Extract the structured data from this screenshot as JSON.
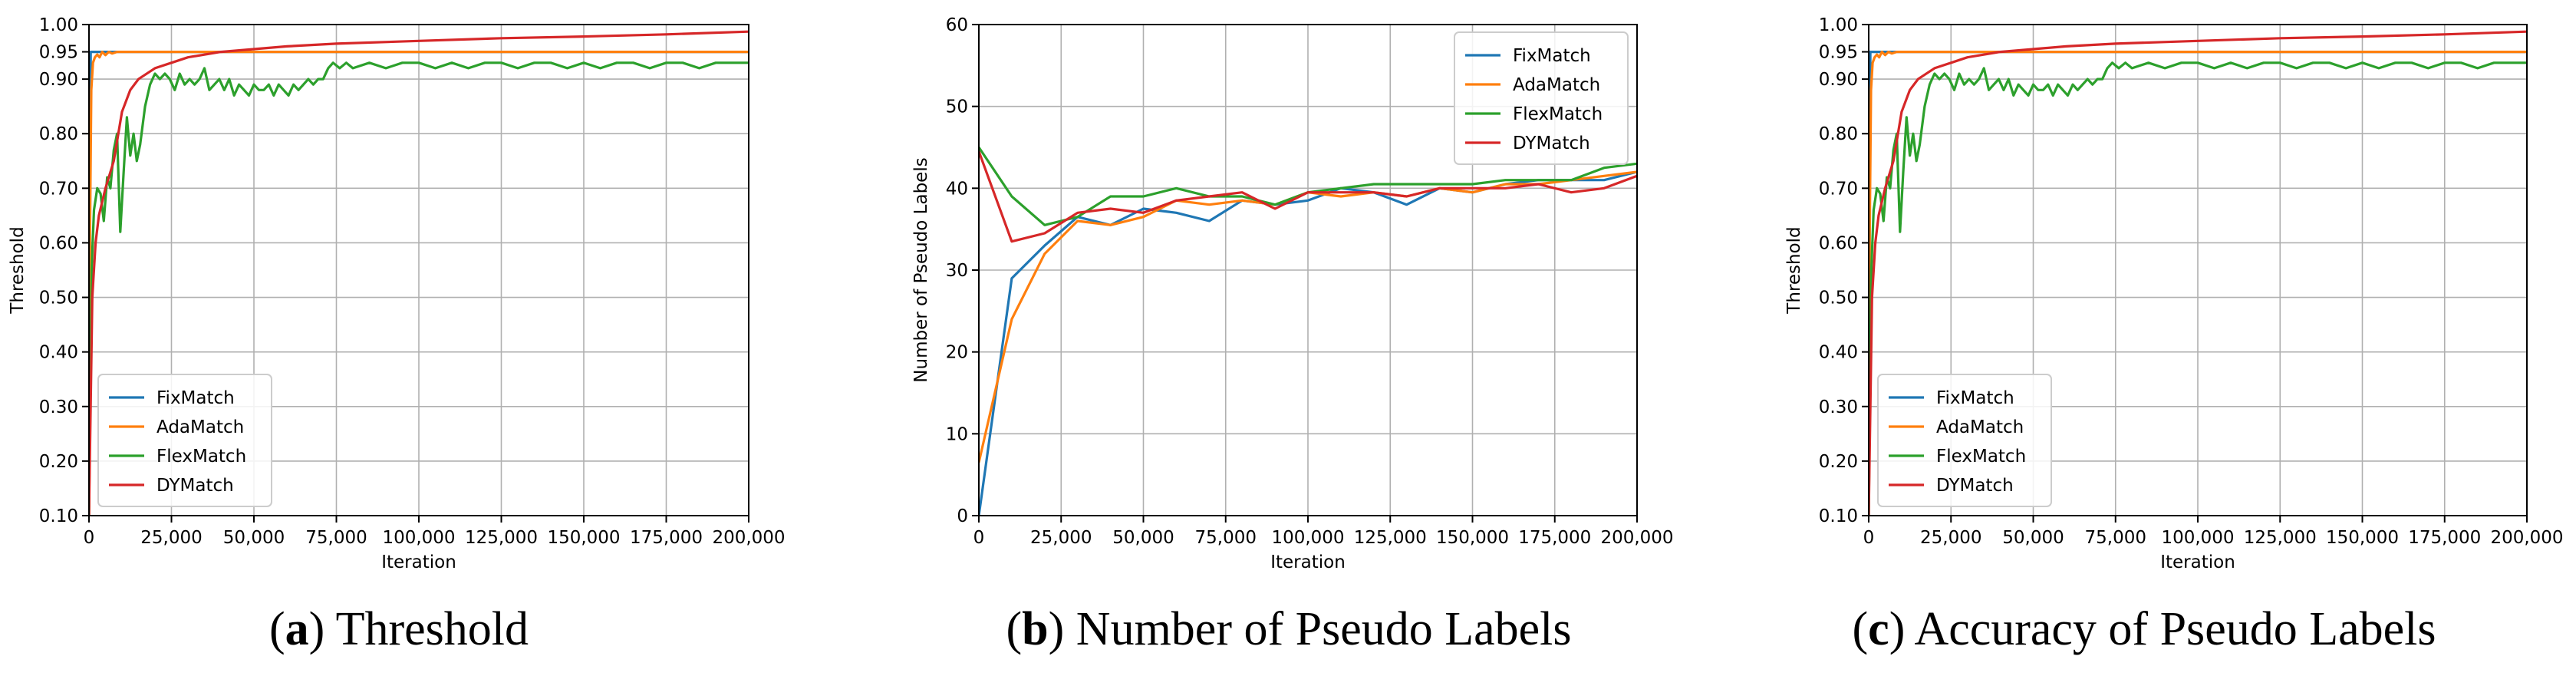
{
  "colors": {
    "FixMatch": "#1f77b4",
    "AdaMatch": "#ff7f0e",
    "FlexMatch": "#2ca02c",
    "DYMatch": "#d62728",
    "grid": "#b0b0b0"
  },
  "captions": [
    {
      "letter": "a",
      "open": "(",
      "close": ")",
      "text": " Threshold"
    },
    {
      "letter": "b",
      "open": "(",
      "close": ")",
      "text": " Number of Pseudo Labels"
    },
    {
      "letter": "c",
      "open": "(",
      "close": ")",
      "text": " Accuracy of Pseudo Labels"
    }
  ],
  "chart_data": [
    {
      "type": "line",
      "xlabel": "Iteration",
      "ylabel": "Threshold",
      "xlim": [
        0,
        200000
      ],
      "ylim": [
        0.1,
        1.0
      ],
      "xticks": [
        0,
        25000,
        50000,
        75000,
        100000,
        125000,
        150000,
        175000,
        200000
      ],
      "xtick_labels": [
        "0",
        "25,000",
        "50,000",
        "75,000",
        "100,000",
        "125,000",
        "150,000",
        "175,000",
        "200,000"
      ],
      "yticks": [
        0.1,
        0.2,
        0.3,
        0.4,
        0.5,
        0.6,
        0.7,
        0.8,
        0.9,
        0.95,
        1.0
      ],
      "ytick_labels": [
        "0.10",
        "0.20",
        "0.30",
        "0.40",
        "0.50",
        "0.60",
        "0.70",
        "0.80",
        "0.90",
        "0.95",
        "1.00"
      ],
      "grid": true,
      "legend": "lower-left",
      "series": [
        {
          "name": "FixMatch",
          "x": [
            0,
            500,
            200000
          ],
          "y": [
            0.1,
            0.95,
            0.95
          ]
        },
        {
          "name": "AdaMatch",
          "x": [
            0,
            300,
            700,
            1200,
            1800,
            2500,
            3200,
            4000,
            5000,
            6000,
            7000,
            8500,
            10000,
            200000
          ],
          "y": [
            0.1,
            0.62,
            0.88,
            0.93,
            0.94,
            0.945,
            0.94,
            0.95,
            0.944,
            0.95,
            0.947,
            0.95,
            0.95,
            0.95
          ]
        },
        {
          "name": "FlexMatch",
          "x": [
            0,
            800,
            1500,
            2500,
            3500,
            4500,
            5500,
            6500,
            7500,
            8500,
            9500,
            10500,
            11500,
            12500,
            13500,
            14500,
            15500,
            17000,
            18500,
            20000,
            21500,
            23000,
            24500,
            26000,
            27500,
            29000,
            30500,
            32000,
            33500,
            35000,
            36500,
            38000,
            39500,
            41000,
            42500,
            44000,
            45500,
            47000,
            48500,
            50000,
            51500,
            53000,
            54500,
            56000,
            57500,
            59000,
            60500,
            62000,
            63500,
            65000,
            66500,
            68000,
            69500,
            71000,
            72500,
            74000,
            76000,
            78000,
            80000,
            85000,
            90000,
            95000,
            100000,
            105000,
            110000,
            115000,
            120000,
            125000,
            130000,
            135000,
            140000,
            145000,
            150000,
            155000,
            160000,
            165000,
            170000,
            175000,
            180000,
            185000,
            190000,
            195000,
            200000
          ],
          "y": [
            0.1,
            0.55,
            0.66,
            0.7,
            0.69,
            0.64,
            0.72,
            0.7,
            0.77,
            0.8,
            0.62,
            0.73,
            0.83,
            0.76,
            0.8,
            0.75,
            0.78,
            0.85,
            0.89,
            0.91,
            0.9,
            0.91,
            0.9,
            0.88,
            0.91,
            0.89,
            0.9,
            0.89,
            0.9,
            0.92,
            0.88,
            0.89,
            0.9,
            0.88,
            0.9,
            0.87,
            0.89,
            0.88,
            0.87,
            0.89,
            0.88,
            0.88,
            0.89,
            0.87,
            0.89,
            0.88,
            0.87,
            0.89,
            0.88,
            0.89,
            0.9,
            0.89,
            0.9,
            0.9,
            0.92,
            0.93,
            0.92,
            0.93,
            0.92,
            0.93,
            0.92,
            0.93,
            0.93,
            0.92,
            0.93,
            0.92,
            0.93,
            0.93,
            0.92,
            0.93,
            0.93,
            0.92,
            0.93,
            0.92,
            0.93,
            0.93,
            0.92,
            0.93,
            0.93,
            0.92,
            0.93,
            0.93,
            0.93
          ]
        },
        {
          "name": "DYMatch",
          "x": [
            0,
            1000,
            2000,
            3000,
            5000,
            7500,
            10000,
            12500,
            15000,
            20000,
            25000,
            30000,
            40000,
            50000,
            60000,
            75000,
            100000,
            125000,
            150000,
            175000,
            200000
          ],
          "y": [
            0.1,
            0.5,
            0.6,
            0.65,
            0.7,
            0.75,
            0.84,
            0.88,
            0.9,
            0.92,
            0.93,
            0.94,
            0.95,
            0.955,
            0.96,
            0.965,
            0.97,
            0.975,
            0.978,
            0.982,
            0.987
          ]
        }
      ]
    },
    {
      "type": "line",
      "xlabel": "Iteration",
      "ylabel": "Number of Pseudo Labels",
      "xlim": [
        0,
        200000
      ],
      "ylim": [
        0,
        60
      ],
      "xticks": [
        0,
        25000,
        50000,
        75000,
        100000,
        125000,
        150000,
        175000,
        200000
      ],
      "xtick_labels": [
        "0",
        "25,000",
        "50,000",
        "75,000",
        "100,000",
        "125,000",
        "150,000",
        "175,000",
        "200,000"
      ],
      "yticks": [
        0,
        10,
        20,
        30,
        40,
        50,
        60
      ],
      "ytick_labels": [
        "0",
        "10",
        "20",
        "30",
        "40",
        "50",
        "60"
      ],
      "grid": true,
      "legend": "top-right",
      "series": [
        {
          "name": "FixMatch",
          "x": [
            0,
            10000,
            20000,
            30000,
            40000,
            50000,
            60000,
            70000,
            80000,
            90000,
            100000,
            110000,
            120000,
            130000,
            140000,
            150000,
            160000,
            170000,
            180000,
            190000,
            200000
          ],
          "y": [
            0,
            29,
            33,
            36.5,
            35.5,
            37.5,
            37,
            36,
            38.5,
            38,
            38.5,
            40,
            39.5,
            38,
            40,
            39.5,
            40.5,
            41,
            41,
            41,
            42
          ]
        },
        {
          "name": "AdaMatch",
          "x": [
            0,
            10000,
            20000,
            30000,
            40000,
            50000,
            60000,
            70000,
            80000,
            90000,
            100000,
            110000,
            120000,
            130000,
            140000,
            150000,
            160000,
            170000,
            180000,
            190000,
            200000
          ],
          "y": [
            6.5,
            24,
            32,
            36,
            35.5,
            36.5,
            38.5,
            38,
            38.5,
            38,
            39.5,
            39,
            39.5,
            39,
            40,
            39.5,
            40.5,
            40.5,
            41,
            41.5,
            42
          ]
        },
        {
          "name": "FlexMatch",
          "x": [
            0,
            10000,
            20000,
            30000,
            40000,
            50000,
            60000,
            70000,
            80000,
            90000,
            100000,
            110000,
            120000,
            130000,
            140000,
            150000,
            160000,
            170000,
            180000,
            190000,
            200000
          ],
          "y": [
            45,
            39,
            35.5,
            36.5,
            39,
            39,
            40,
            39,
            39,
            38,
            39.5,
            40,
            40.5,
            40.5,
            40.5,
            40.5,
            41,
            41,
            41,
            42.5,
            43
          ]
        },
        {
          "name": "DYMatch",
          "x": [
            0,
            10000,
            20000,
            30000,
            40000,
            50000,
            60000,
            70000,
            80000,
            90000,
            100000,
            110000,
            120000,
            130000,
            140000,
            150000,
            160000,
            170000,
            180000,
            190000,
            200000
          ],
          "y": [
            44.5,
            33.5,
            34.5,
            37,
            37.5,
            37,
            38.5,
            39,
            39.5,
            37.5,
            39.5,
            39.5,
            39.5,
            39,
            40,
            40,
            40,
            40.5,
            39.5,
            40,
            41.5
          ]
        }
      ]
    },
    {
      "type": "line",
      "xlabel": "Iteration",
      "ylabel": "Threshold",
      "xlim": [
        0,
        200000
      ],
      "ylim": [
        0.1,
        1.0
      ],
      "xticks": [
        0,
        25000,
        50000,
        75000,
        100000,
        125000,
        150000,
        175000,
        200000
      ],
      "xtick_labels": [
        "0",
        "25,000",
        "50,000",
        "75,000",
        "100,000",
        "125,000",
        "150,000",
        "175,000",
        "200,000"
      ],
      "yticks": [
        0.1,
        0.2,
        0.3,
        0.4,
        0.5,
        0.6,
        0.7,
        0.8,
        0.9,
        0.95,
        1.0
      ],
      "ytick_labels": [
        "0.10",
        "0.20",
        "0.30",
        "0.40",
        "0.50",
        "0.60",
        "0.70",
        "0.80",
        "0.90",
        "0.95",
        "1.00"
      ],
      "grid": true,
      "legend": "lower-left",
      "series": [
        {
          "name": "FixMatch",
          "x": [
            0,
            500,
            200000
          ],
          "y": [
            0.1,
            0.95,
            0.95
          ]
        },
        {
          "name": "AdaMatch",
          "x": [
            0,
            300,
            700,
            1200,
            1800,
            2500,
            3200,
            4000,
            5000,
            6000,
            7000,
            8500,
            10000,
            200000
          ],
          "y": [
            0.1,
            0.62,
            0.88,
            0.93,
            0.94,
            0.945,
            0.94,
            0.95,
            0.944,
            0.95,
            0.947,
            0.95,
            0.95,
            0.95
          ]
        },
        {
          "name": "FlexMatch",
          "x": [
            0,
            800,
            1500,
            2500,
            3500,
            4500,
            5500,
            6500,
            7500,
            8500,
            9500,
            10500,
            11500,
            12500,
            13500,
            14500,
            15500,
            17000,
            18500,
            20000,
            21500,
            23000,
            24500,
            26000,
            27500,
            29000,
            30500,
            32000,
            33500,
            35000,
            36500,
            38000,
            39500,
            41000,
            42500,
            44000,
            45500,
            47000,
            48500,
            50000,
            51500,
            53000,
            54500,
            56000,
            57500,
            59000,
            60500,
            62000,
            63500,
            65000,
            66500,
            68000,
            69500,
            71000,
            72500,
            74000,
            76000,
            78000,
            80000,
            85000,
            90000,
            95000,
            100000,
            105000,
            110000,
            115000,
            120000,
            125000,
            130000,
            135000,
            140000,
            145000,
            150000,
            155000,
            160000,
            165000,
            170000,
            175000,
            180000,
            185000,
            190000,
            195000,
            200000
          ],
          "y": [
            0.1,
            0.55,
            0.66,
            0.7,
            0.69,
            0.64,
            0.72,
            0.7,
            0.77,
            0.8,
            0.62,
            0.73,
            0.83,
            0.76,
            0.8,
            0.75,
            0.78,
            0.85,
            0.89,
            0.91,
            0.9,
            0.91,
            0.9,
            0.88,
            0.91,
            0.89,
            0.9,
            0.89,
            0.9,
            0.92,
            0.88,
            0.89,
            0.9,
            0.88,
            0.9,
            0.87,
            0.89,
            0.88,
            0.87,
            0.89,
            0.88,
            0.88,
            0.89,
            0.87,
            0.89,
            0.88,
            0.87,
            0.89,
            0.88,
            0.89,
            0.9,
            0.89,
            0.9,
            0.9,
            0.92,
            0.93,
            0.92,
            0.93,
            0.92,
            0.93,
            0.92,
            0.93,
            0.93,
            0.92,
            0.93,
            0.92,
            0.93,
            0.93,
            0.92,
            0.93,
            0.93,
            0.92,
            0.93,
            0.92,
            0.93,
            0.93,
            0.92,
            0.93,
            0.93,
            0.92,
            0.93,
            0.93,
            0.93
          ]
        },
        {
          "name": "DYMatch",
          "x": [
            0,
            1000,
            2000,
            3000,
            5000,
            7500,
            10000,
            12500,
            15000,
            20000,
            25000,
            30000,
            40000,
            50000,
            60000,
            75000,
            100000,
            125000,
            150000,
            175000,
            200000
          ],
          "y": [
            0.1,
            0.5,
            0.6,
            0.65,
            0.7,
            0.75,
            0.84,
            0.88,
            0.9,
            0.92,
            0.93,
            0.94,
            0.95,
            0.955,
            0.96,
            0.965,
            0.97,
            0.975,
            0.978,
            0.982,
            0.987
          ]
        }
      ]
    }
  ]
}
